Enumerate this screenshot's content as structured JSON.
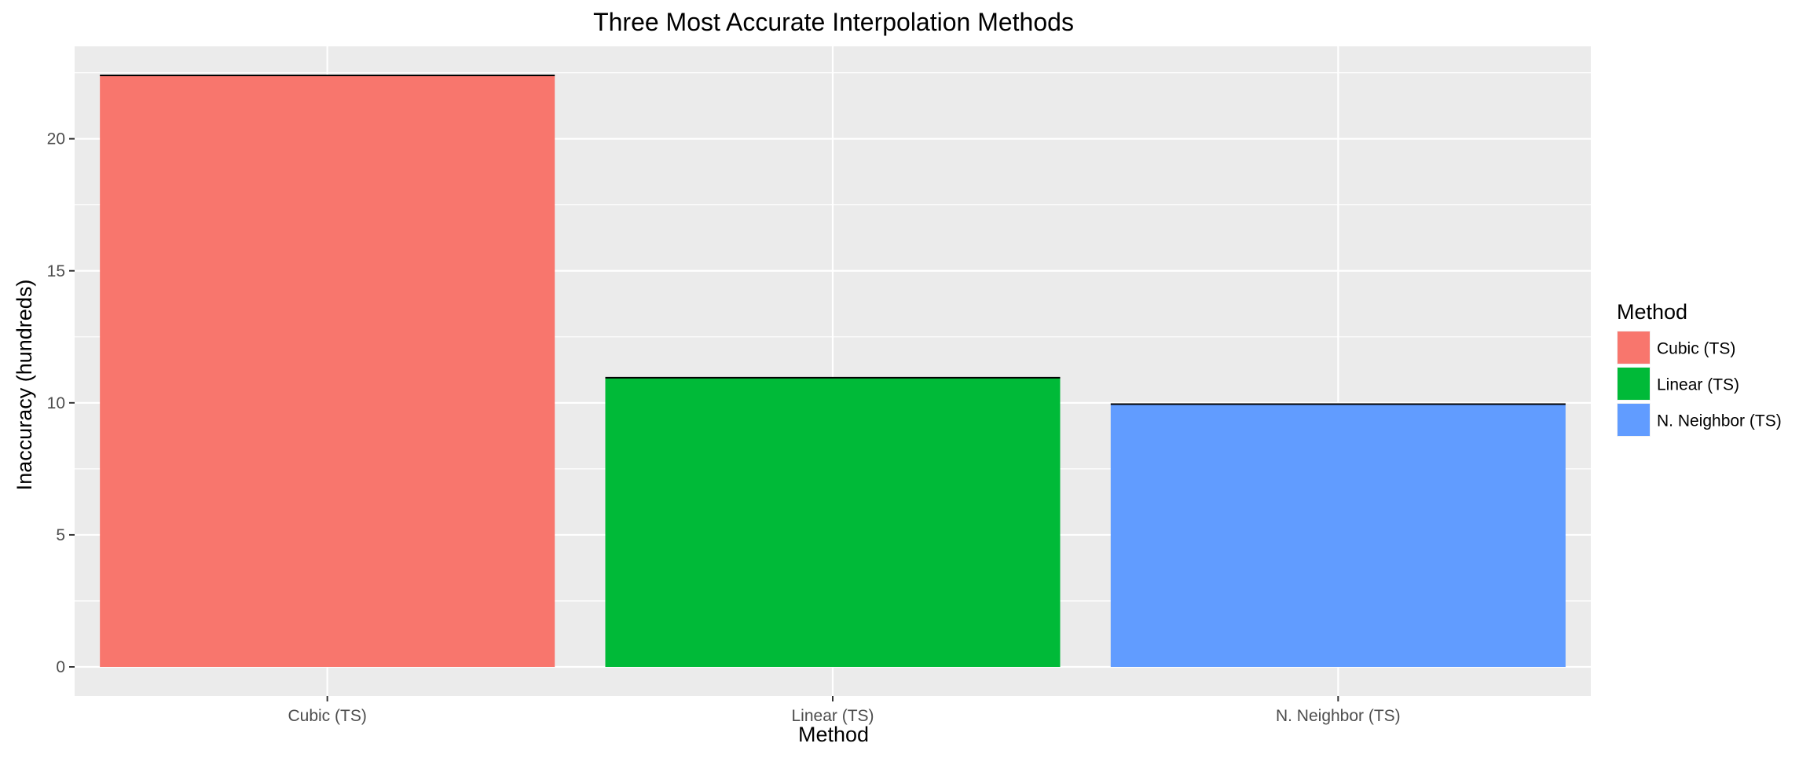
{
  "chart_data": {
    "type": "bar",
    "title": "Three Most Accurate Interpolation Methods",
    "xlabel": "Method",
    "ylabel": "Inaccuracy (hundreds)",
    "categories": [
      "Cubic (TS)",
      "Linear (TS)",
      "N. Neighbor (TS)"
    ],
    "values": [
      22.4,
      10.95,
      9.95
    ],
    "colors": [
      "#F8766D",
      "#00BA38",
      "#619CFF"
    ],
    "ylim": [
      -1.1,
      23.5
    ],
    "yticks": [
      0,
      5,
      10,
      15,
      20
    ],
    "ytick_labels": [
      "0",
      "5",
      "10",
      "15",
      "20"
    ],
    "grid": true,
    "legend": {
      "title": "Method",
      "position": "right",
      "entries": [
        "Cubic (TS)",
        "Linear (TS)",
        "N. Neighbor (TS)"
      ]
    }
  }
}
